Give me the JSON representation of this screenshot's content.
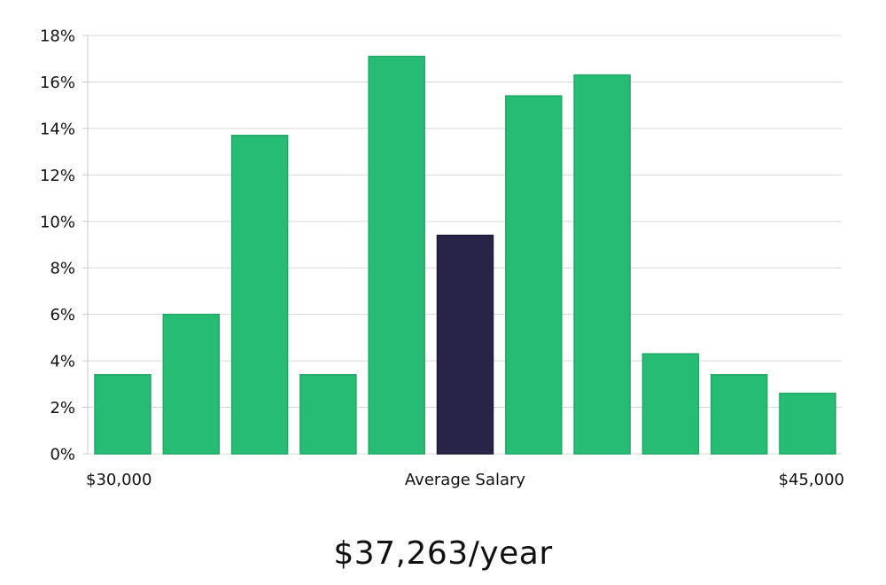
{
  "chart_data": {
    "type": "bar",
    "ylim": [
      0,
      18
    ],
    "yticks": [
      0,
      2,
      4,
      6,
      8,
      10,
      12,
      14,
      16,
      18
    ],
    "ytick_suffix": "%",
    "values": [
      3.4,
      6.0,
      13.7,
      3.4,
      17.1,
      9.4,
      15.4,
      16.3,
      4.3,
      3.4,
      2.6
    ],
    "highlight_index": 5,
    "x_labels": {
      "left": "$30,000",
      "center": "Average Salary",
      "right": "$45,000"
    },
    "grid": true
  },
  "colors": {
    "bar": "#27bc74",
    "bar_edge": "#1fa866",
    "highlight": "#272447",
    "grid": "#d8d8d8",
    "axis": "#c8c8c8"
  },
  "summary": {
    "average_salary": "$37,263/year"
  }
}
